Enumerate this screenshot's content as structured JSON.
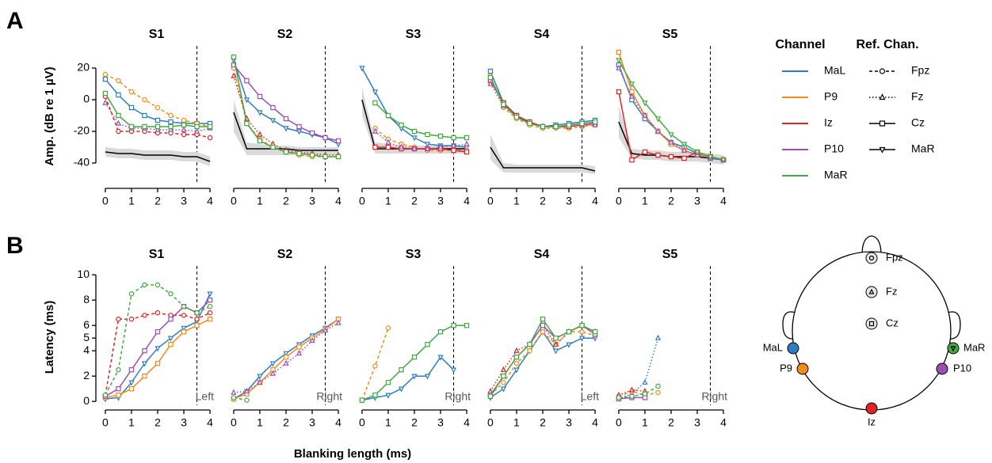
{
  "panel_labels": [
    "A",
    "B"
  ],
  "x_label": "Blanking length (ms)",
  "legend": {
    "channel_title": "Channel",
    "channels": [
      {
        "name": "MaL",
        "color": "#2e7ebf"
      },
      {
        "name": "P9",
        "color": "#f28a1c"
      },
      {
        "name": "Iz",
        "color": "#e02424"
      },
      {
        "name": "P10",
        "color": "#9b4fb3"
      },
      {
        "name": "MaR",
        "color": "#44a845"
      }
    ],
    "ref_title": "Ref. Chan.",
    "refs": [
      {
        "name": "Fpz",
        "dash": "4 3",
        "marker": "circle"
      },
      {
        "name": "Fz",
        "dash": "1.5 2.5",
        "marker": "triangle"
      },
      {
        "name": "Cz",
        "dash": "none",
        "marker": "square"
      },
      {
        "name": "MaR",
        "dash": "none",
        "marker": "down"
      }
    ]
  },
  "head": {
    "electrodes": [
      "Fpz",
      "Fz",
      "Cz",
      "MaL",
      "P9",
      "Iz",
      "P10",
      "MaR"
    ]
  },
  "chart_data": [
    {
      "type": "line",
      "title": "S1",
      "ylabel": "Amp. (dB re 1 µV)",
      "x": [
        0,
        0.5,
        1,
        1.5,
        2,
        2.5,
        3,
        3.5,
        4
      ],
      "xlim": [
        -0.24,
        4.15
      ],
      "xticks": [
        0,
        1,
        2,
        3,
        4
      ],
      "ylim": [
        -53,
        32
      ],
      "yticks": [
        -40,
        -20,
        0,
        20
      ],
      "vline": 3.5,
      "floor": {
        "values": [
          -33,
          -34,
          -34,
          -35,
          -35,
          -35,
          -36,
          -36,
          -39
        ],
        "upper": [
          -30,
          -31,
          -31,
          -32,
          -32,
          -32,
          -33,
          -33,
          -36
        ],
        "lower": [
          -36,
          -37,
          -37,
          -38,
          -38,
          -38,
          -39,
          -39,
          -42
        ]
      },
      "series": [
        {
          "channel": 0,
          "ref": 2,
          "values": [
            13,
            3,
            -5,
            -10,
            -13,
            -14,
            -15,
            -15,
            -15
          ]
        },
        {
          "channel": 1,
          "ref": 0,
          "values": [
            16,
            12,
            5,
            0,
            -5,
            -10,
            -13,
            -15,
            -17
          ]
        },
        {
          "channel": 2,
          "ref": 0,
          "values": [
            2,
            -20,
            -20,
            -20,
            -21,
            -21,
            -22,
            -22,
            -24
          ]
        },
        {
          "channel": 3,
          "ref": 1,
          "values": [
            -2,
            -15,
            -18,
            -18,
            -19,
            -19,
            -19,
            -20,
            -18
          ]
        },
        {
          "channel": 4,
          "ref": 2,
          "values": [
            4,
            -10,
            -17,
            -17,
            -17,
            -17,
            -16,
            -17,
            -17
          ]
        }
      ]
    },
    {
      "type": "line",
      "title": "S2",
      "x": [
        0,
        0.5,
        1,
        1.5,
        2,
        2.5,
        3,
        3.5,
        4
      ],
      "xlim": [
        -0.24,
        4.15
      ],
      "xticks": [
        0,
        1,
        2,
        3,
        4
      ],
      "ylim": [
        -53,
        32
      ],
      "vline": 3.5,
      "floor": {
        "values": [
          -8,
          -31,
          -31,
          -31,
          -31,
          -32,
          -32,
          -32,
          -32
        ],
        "upper": [
          0,
          -27,
          -28,
          -29,
          -29,
          -30,
          -30,
          -30,
          -30
        ],
        "lower": [
          -20,
          -35,
          -35,
          -35,
          -35,
          -35,
          -35,
          -35,
          -35
        ]
      },
      "series": [
        {
          "channel": 0,
          "ref": 3,
          "values": [
            25,
            0,
            -8,
            -13,
            -18,
            -20,
            -22,
            -24,
            -28
          ]
        },
        {
          "channel": 1,
          "ref": 0,
          "values": [
            20,
            -15,
            -25,
            -30,
            -33,
            -35,
            -36,
            -36,
            -36
          ]
        },
        {
          "channel": 2,
          "ref": 1,
          "values": [
            15,
            -12,
            -22,
            -28,
            -32,
            -33,
            -34,
            -35,
            -35
          ]
        },
        {
          "channel": 3,
          "ref": 2,
          "values": [
            22,
            12,
            2,
            -5,
            -12,
            -17,
            -21,
            -24,
            -26
          ]
        },
        {
          "channel": 4,
          "ref": 2,
          "values": [
            27,
            -15,
            -26,
            -30,
            -33,
            -34,
            -35,
            -36,
            -36
          ]
        }
      ]
    },
    {
      "type": "line",
      "title": "S3",
      "x": [
        0,
        0.5,
        1,
        1.5,
        2,
        2.5,
        3,
        3.5,
        4
      ],
      "xlim": [
        -0.24,
        4.15
      ],
      "xticks": [
        0,
        1,
        2,
        3,
        4
      ],
      "ylim": [
        -53,
        32
      ],
      "vline": 3.5,
      "floor": {
        "values": [
          0,
          -31,
          -31,
          -31,
          -31,
          -31,
          -31,
          -31,
          -31
        ],
        "upper": [
          8,
          -27,
          -28,
          -29,
          -29,
          -29,
          -29,
          -29,
          -29
        ],
        "lower": [
          -10,
          -34,
          -34,
          -34,
          -34,
          -34,
          -34,
          -34,
          -34
        ]
      },
      "series": [
        {
          "channel": 0,
          "ref": 3,
          "values": [
            20,
            5,
            -10,
            -18,
            -24,
            -28,
            -29,
            -29,
            -30
          ]
        },
        {
          "channel": 1,
          "ref": 0,
          "values": [
            null,
            -18,
            -25,
            -28,
            -30,
            -32,
            -32,
            -32,
            -32
          ]
        },
        {
          "channel": 2,
          "ref": 2,
          "values": [
            null,
            -30,
            -30,
            -31,
            -31,
            -31,
            -31,
            -32,
            -33
          ]
        },
        {
          "channel": 3,
          "ref": 1,
          "values": [
            null,
            -20,
            -27,
            -30,
            -31,
            -31,
            -30,
            -29,
            -28
          ]
        },
        {
          "channel": 4,
          "ref": 2,
          "values": [
            null,
            -2,
            -10,
            -16,
            -20,
            -22,
            -23,
            -24,
            -24
          ]
        }
      ]
    },
    {
      "type": "line",
      "title": "S4",
      "x": [
        0,
        0.5,
        1,
        1.5,
        2,
        2.5,
        3,
        3.5,
        4
      ],
      "xlim": [
        -0.24,
        4.15
      ],
      "xticks": [
        0,
        1,
        2,
        3,
        4
      ],
      "ylim": [
        -53,
        32
      ],
      "vline": 3.5,
      "floor": {
        "values": [
          -30,
          -43,
          -43,
          -43,
          -43,
          -43,
          -43,
          -43,
          -45
        ],
        "upper": [
          -22,
          -40,
          -41,
          -41,
          -41,
          -41,
          -41,
          -41,
          -42
        ],
        "lower": [
          -38,
          -46,
          -46,
          -46,
          -46,
          -46,
          -46,
          -46,
          -47
        ]
      },
      "series": [
        {
          "channel": 0,
          "ref": 2,
          "values": [
            18,
            -2,
            -10,
            -15,
            -17,
            -16,
            -15,
            -14,
            -13
          ]
        },
        {
          "channel": 1,
          "ref": 0,
          "values": [
            15,
            -5,
            -12,
            -16,
            -18,
            -18,
            -18,
            -17,
            -16
          ]
        },
        {
          "channel": 2,
          "ref": 2,
          "values": [
            12,
            -2,
            -10,
            -14,
            -17,
            -17,
            -17,
            -16,
            -15
          ]
        },
        {
          "channel": 3,
          "ref": 1,
          "values": [
            10,
            -4,
            -11,
            -15,
            -17,
            -17,
            -16,
            -16,
            -16
          ]
        },
        {
          "channel": 4,
          "ref": 2,
          "values": [
            14,
            -3,
            -11,
            -15,
            -17,
            -17,
            -16,
            -15,
            -14
          ]
        }
      ]
    },
    {
      "type": "line",
      "title": "S5",
      "x": [
        0,
        0.5,
        1,
        1.5,
        2,
        2.5,
        3,
        3.5,
        4
      ],
      "xlim": [
        -0.24,
        4.15
      ],
      "xticks": [
        0,
        1,
        2,
        3,
        4
      ],
      "ylim": [
        -53,
        32
      ],
      "vline": 3.5,
      "floor": {
        "values": [
          -14,
          -34,
          -35,
          -35,
          -36,
          -36,
          -36,
          -37,
          -38
        ],
        "upper": [
          -4,
          -31,
          -32,
          -32,
          -33,
          -33,
          -33,
          -34,
          -35
        ],
        "lower": [
          -24,
          -37,
          -38,
          -38,
          -39,
          -39,
          -39,
          -40,
          -41
        ]
      },
      "series": [
        {
          "channel": 0,
          "ref": 2,
          "values": [
            22,
            0,
            -12,
            -20,
            -27,
            -30,
            -34,
            -37,
            -38
          ]
        },
        {
          "channel": 1,
          "ref": 2,
          "values": [
            30,
            5,
            -10,
            -20,
            -28,
            -32,
            -35,
            -36,
            -38
          ]
        },
        {
          "channel": 2,
          "ref": 2,
          "values": [
            5,
            -38,
            -33,
            -35,
            -36,
            -37,
            -33,
            -36,
            -38
          ]
        },
        {
          "channel": 3,
          "ref": 1,
          "values": [
            20,
            2,
            -10,
            -20,
            -27,
            -32,
            -35,
            -37,
            -38
          ]
        },
        {
          "channel": 4,
          "ref": 3,
          "values": [
            25,
            10,
            -2,
            -12,
            -22,
            -28,
            -33,
            -36,
            -38
          ]
        }
      ]
    },
    {
      "type": "line",
      "title": "S1",
      "ylabel": "Latency (ms)",
      "annotation": "Left",
      "x": [
        0,
        0.5,
        1,
        1.5,
        2,
        2.5,
        3,
        3.5,
        4
      ],
      "xlim": [
        -0.24,
        4.15
      ],
      "xticks": [
        0,
        1,
        2,
        3,
        4
      ],
      "ylim": [
        -0.3,
        10.45
      ],
      "yticks": [
        0,
        2,
        4,
        5,
        6,
        8,
        10
      ],
      "vline": 3.5,
      "series": [
        {
          "channel": 0,
          "ref": 3,
          "values": [
            0.2,
            0.3,
            1.5,
            3,
            4.2,
            5,
            5.8,
            6.3,
            8.5
          ]
        },
        {
          "channel": 1,
          "ref": 2,
          "values": [
            0.3,
            0.5,
            1,
            2,
            3,
            4.5,
            5.5,
            6,
            6.5
          ]
        },
        {
          "channel": 2,
          "ref": 0,
          "values": [
            0.5,
            6.5,
            6.5,
            6.8,
            7,
            6.8,
            6.8,
            6.5,
            7
          ]
        },
        {
          "channel": 3,
          "ref": 2,
          "values": [
            0.4,
            1,
            2.5,
            4,
            5.5,
            6.5,
            7.5,
            7,
            8
          ]
        },
        {
          "channel": 4,
          "ref": 0,
          "values": [
            0.5,
            2.5,
            8.5,
            9.2,
            9.2,
            8.5,
            7.5,
            7,
            7.5
          ]
        }
      ]
    },
    {
      "type": "line",
      "title": "S2",
      "annotation": "Right",
      "x": [
        0,
        0.5,
        1,
        1.5,
        2,
        2.5,
        3,
        3.5,
        4
      ],
      "xlim": [
        -0.24,
        4.15
      ],
      "xticks": [
        0,
        1,
        2,
        3,
        4
      ],
      "ylim": [
        -0.3,
        10.45
      ],
      "vline": 3.5,
      "series": [
        {
          "channel": 0,
          "ref": 3,
          "values": [
            0.2,
            0.8,
            2,
            3,
            3.8,
            4.5,
            5.2,
            5.8,
            6.5
          ]
        },
        {
          "channel": 1,
          "ref": 2,
          "values": [
            0.2,
            0.6,
            1.5,
            2.5,
            3.5,
            4.3,
            5,
            5.7,
            6.5
          ]
        },
        {
          "channel": 3,
          "ref": 1,
          "values": [
            0.7,
            0.8,
            1.5,
            2.2,
            3,
            3.8,
            4.8,
            5.6,
            6.2
          ]
        },
        {
          "channel": 4,
          "ref": 0,
          "values": [
            0.3,
            0.1,
            null,
            null,
            null,
            null,
            null,
            null,
            null
          ]
        }
      ]
    },
    {
      "type": "line",
      "title": "S3",
      "annotation": "Right",
      "x": [
        0,
        0.5,
        1,
        1.5,
        2,
        2.5,
        3,
        3.5,
        4
      ],
      "xlim": [
        -0.24,
        4.15
      ],
      "xticks": [
        0,
        1,
        2,
        3,
        4
      ],
      "ylim": [
        -0.3,
        10.45
      ],
      "vline": 3.5,
      "series": [
        {
          "channel": 0,
          "ref": 3,
          "values": [
            0.1,
            0.3,
            0.5,
            1,
            2,
            2,
            3.5,
            2.5,
            null
          ]
        },
        {
          "channel": 1,
          "ref": 0,
          "values": [
            0.1,
            2.8,
            5.8,
            null,
            null,
            null,
            null,
            null,
            null
          ]
        },
        {
          "channel": 4,
          "ref": 2,
          "values": [
            0.1,
            0.5,
            1.5,
            2.5,
            3.5,
            4.5,
            5.5,
            6,
            6
          ]
        }
      ]
    },
    {
      "type": "line",
      "title": "S4",
      "annotation": "Left",
      "x": [
        0,
        0.5,
        1,
        1.5,
        2,
        2.5,
        3,
        3.5,
        4
      ],
      "xlim": [
        -0.24,
        4.15
      ],
      "xticks": [
        0,
        1,
        2,
        3,
        4
      ],
      "ylim": [
        -0.3,
        10.45
      ],
      "vline": 3.5,
      "series": [
        {
          "channel": 0,
          "ref": 3,
          "values": [
            0.3,
            1,
            2.5,
            4,
            5.5,
            4,
            4.5,
            5,
            5
          ]
        },
        {
          "channel": 1,
          "ref": 0,
          "values": [
            0.5,
            1.5,
            3,
            4,
            5.5,
            4.5,
            5.5,
            5.5,
            5.2
          ]
        },
        {
          "channel": 2,
          "ref": 1,
          "values": [
            0.8,
            2.5,
            4,
            4.5,
            6,
            4.5,
            5.5,
            6,
            5.5
          ]
        },
        {
          "channel": 3,
          "ref": 2,
          "values": [
            0.5,
            2,
            3.5,
            4.5,
            6,
            5,
            5.5,
            6,
            5.3
          ]
        },
        {
          "channel": 4,
          "ref": 2,
          "values": [
            0.4,
            2,
            3.5,
            4.5,
            6.5,
            5,
            5.5,
            6,
            5.5
          ]
        }
      ]
    },
    {
      "type": "line",
      "title": "S5",
      "annotation": "Right",
      "x": [
        0,
        0.5,
        1,
        1.5,
        2,
        2.5,
        3,
        3.5,
        4
      ],
      "xlim": [
        -0.24,
        4.15
      ],
      "xticks": [
        0,
        1,
        2,
        3,
        4
      ],
      "ylim": [
        -0.3,
        10.45
      ],
      "vline": 3.5,
      "series": [
        {
          "channel": 0,
          "ref": 1,
          "values": [
            0.2,
            0.6,
            1.5,
            5,
            null,
            null,
            null,
            null,
            null
          ]
        },
        {
          "channel": 1,
          "ref": 0,
          "values": [
            0.4,
            0.8,
            0.5,
            0.7,
            null,
            null,
            null,
            null,
            null
          ]
        },
        {
          "channel": 2,
          "ref": 1,
          "values": [
            0.5,
            0.9,
            0.8,
            null,
            null,
            null,
            null,
            null,
            null
          ]
        },
        {
          "channel": 3,
          "ref": 2,
          "values": [
            0.2,
            0.3,
            0.3,
            null,
            null,
            null,
            null,
            null,
            null
          ]
        },
        {
          "channel": 4,
          "ref": 0,
          "values": [
            0.3,
            0.4,
            0.6,
            1.2,
            null,
            null,
            null,
            null,
            null
          ]
        }
      ]
    }
  ]
}
